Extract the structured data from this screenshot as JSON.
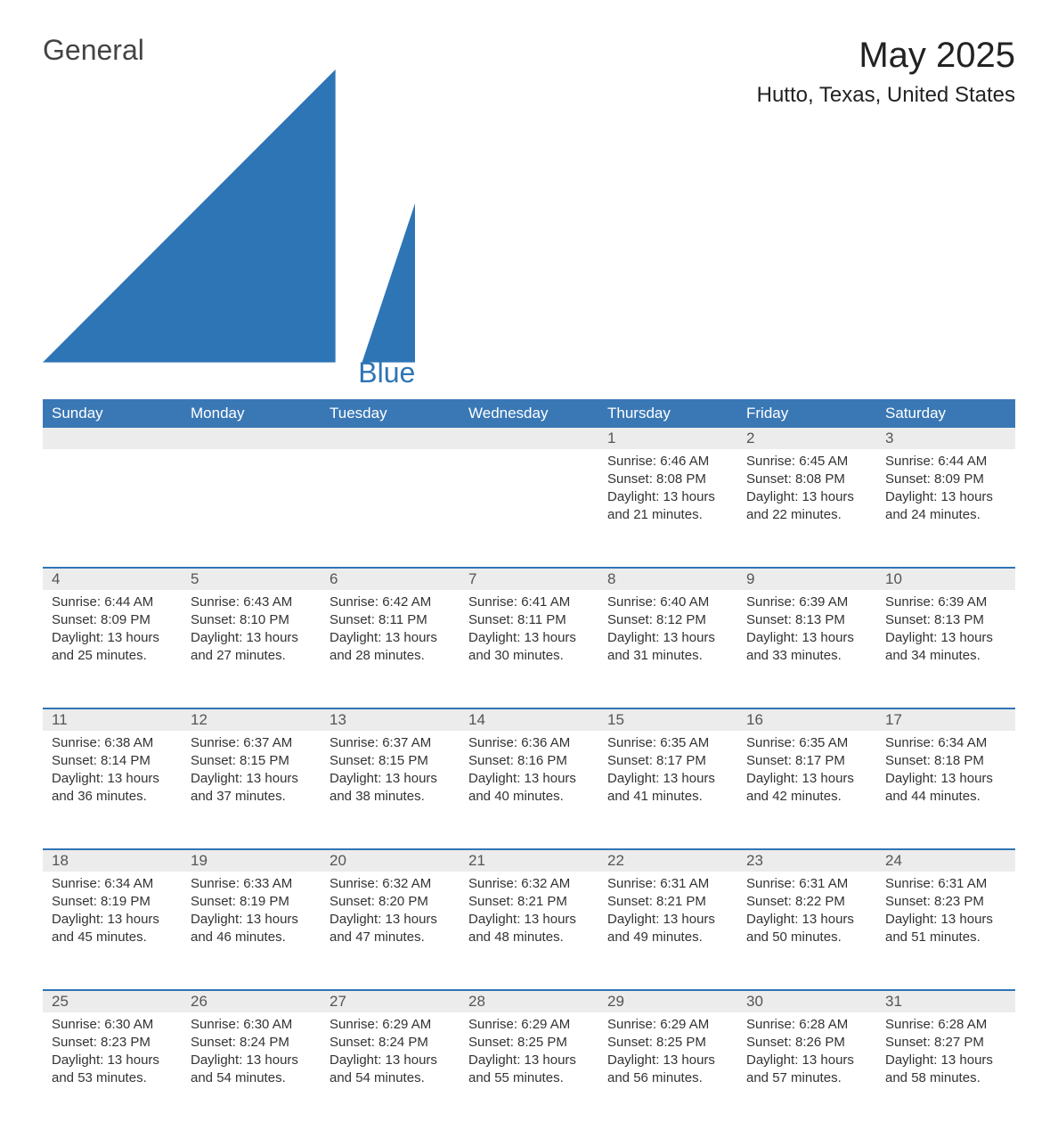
{
  "logo": {
    "general": "General",
    "blue": "Blue"
  },
  "title": "May 2025",
  "location": "Hutto, Texas, United States",
  "colors": {
    "header_bg": "#3a78b5",
    "header_text": "#ffffff",
    "rule": "#2e75b6",
    "daynum_bg": "#ececec",
    "text": "#333333",
    "logo_blue": "#2e75b6",
    "logo_gray": "#444444",
    "background": "#ffffff"
  },
  "weekdays": [
    "Sunday",
    "Monday",
    "Tuesday",
    "Wednesday",
    "Thursday",
    "Friday",
    "Saturday"
  ],
  "weeks": [
    [
      null,
      null,
      null,
      null,
      {
        "n": "1",
        "sunrise": "6:46 AM",
        "sunset": "8:08 PM",
        "dl1": "13 hours",
        "dl2": "and 21 minutes."
      },
      {
        "n": "2",
        "sunrise": "6:45 AM",
        "sunset": "8:08 PM",
        "dl1": "13 hours",
        "dl2": "and 22 minutes."
      },
      {
        "n": "3",
        "sunrise": "6:44 AM",
        "sunset": "8:09 PM",
        "dl1": "13 hours",
        "dl2": "and 24 minutes."
      }
    ],
    [
      {
        "n": "4",
        "sunrise": "6:44 AM",
        "sunset": "8:09 PM",
        "dl1": "13 hours",
        "dl2": "and 25 minutes."
      },
      {
        "n": "5",
        "sunrise": "6:43 AM",
        "sunset": "8:10 PM",
        "dl1": "13 hours",
        "dl2": "and 27 minutes."
      },
      {
        "n": "6",
        "sunrise": "6:42 AM",
        "sunset": "8:11 PM",
        "dl1": "13 hours",
        "dl2": "and 28 minutes."
      },
      {
        "n": "7",
        "sunrise": "6:41 AM",
        "sunset": "8:11 PM",
        "dl1": "13 hours",
        "dl2": "and 30 minutes."
      },
      {
        "n": "8",
        "sunrise": "6:40 AM",
        "sunset": "8:12 PM",
        "dl1": "13 hours",
        "dl2": "and 31 minutes."
      },
      {
        "n": "9",
        "sunrise": "6:39 AM",
        "sunset": "8:13 PM",
        "dl1": "13 hours",
        "dl2": "and 33 minutes."
      },
      {
        "n": "10",
        "sunrise": "6:39 AM",
        "sunset": "8:13 PM",
        "dl1": "13 hours",
        "dl2": "and 34 minutes."
      }
    ],
    [
      {
        "n": "11",
        "sunrise": "6:38 AM",
        "sunset": "8:14 PM",
        "dl1": "13 hours",
        "dl2": "and 36 minutes."
      },
      {
        "n": "12",
        "sunrise": "6:37 AM",
        "sunset": "8:15 PM",
        "dl1": "13 hours",
        "dl2": "and 37 minutes."
      },
      {
        "n": "13",
        "sunrise": "6:37 AM",
        "sunset": "8:15 PM",
        "dl1": "13 hours",
        "dl2": "and 38 minutes."
      },
      {
        "n": "14",
        "sunrise": "6:36 AM",
        "sunset": "8:16 PM",
        "dl1": "13 hours",
        "dl2": "and 40 minutes."
      },
      {
        "n": "15",
        "sunrise": "6:35 AM",
        "sunset": "8:17 PM",
        "dl1": "13 hours",
        "dl2": "and 41 minutes."
      },
      {
        "n": "16",
        "sunrise": "6:35 AM",
        "sunset": "8:17 PM",
        "dl1": "13 hours",
        "dl2": "and 42 minutes."
      },
      {
        "n": "17",
        "sunrise": "6:34 AM",
        "sunset": "8:18 PM",
        "dl1": "13 hours",
        "dl2": "and 44 minutes."
      }
    ],
    [
      {
        "n": "18",
        "sunrise": "6:34 AM",
        "sunset": "8:19 PM",
        "dl1": "13 hours",
        "dl2": "and 45 minutes."
      },
      {
        "n": "19",
        "sunrise": "6:33 AM",
        "sunset": "8:19 PM",
        "dl1": "13 hours",
        "dl2": "and 46 minutes."
      },
      {
        "n": "20",
        "sunrise": "6:32 AM",
        "sunset": "8:20 PM",
        "dl1": "13 hours",
        "dl2": "and 47 minutes."
      },
      {
        "n": "21",
        "sunrise": "6:32 AM",
        "sunset": "8:21 PM",
        "dl1": "13 hours",
        "dl2": "and 48 minutes."
      },
      {
        "n": "22",
        "sunrise": "6:31 AM",
        "sunset": "8:21 PM",
        "dl1": "13 hours",
        "dl2": "and 49 minutes."
      },
      {
        "n": "23",
        "sunrise": "6:31 AM",
        "sunset": "8:22 PM",
        "dl1": "13 hours",
        "dl2": "and 50 minutes."
      },
      {
        "n": "24",
        "sunrise": "6:31 AM",
        "sunset": "8:23 PM",
        "dl1": "13 hours",
        "dl2": "and 51 minutes."
      }
    ],
    [
      {
        "n": "25",
        "sunrise": "6:30 AM",
        "sunset": "8:23 PM",
        "dl1": "13 hours",
        "dl2": "and 53 minutes."
      },
      {
        "n": "26",
        "sunrise": "6:30 AM",
        "sunset": "8:24 PM",
        "dl1": "13 hours",
        "dl2": "and 54 minutes."
      },
      {
        "n": "27",
        "sunrise": "6:29 AM",
        "sunset": "8:24 PM",
        "dl1": "13 hours",
        "dl2": "and 54 minutes."
      },
      {
        "n": "28",
        "sunrise": "6:29 AM",
        "sunset": "8:25 PM",
        "dl1": "13 hours",
        "dl2": "and 55 minutes."
      },
      {
        "n": "29",
        "sunrise": "6:29 AM",
        "sunset": "8:25 PM",
        "dl1": "13 hours",
        "dl2": "and 56 minutes."
      },
      {
        "n": "30",
        "sunrise": "6:28 AM",
        "sunset": "8:26 PM",
        "dl1": "13 hours",
        "dl2": "and 57 minutes."
      },
      {
        "n": "31",
        "sunrise": "6:28 AM",
        "sunset": "8:27 PM",
        "dl1": "13 hours",
        "dl2": "and 58 minutes."
      }
    ]
  ],
  "labels": {
    "sunrise": "Sunrise: ",
    "sunset": "Sunset: ",
    "daylight": "Daylight: "
  }
}
